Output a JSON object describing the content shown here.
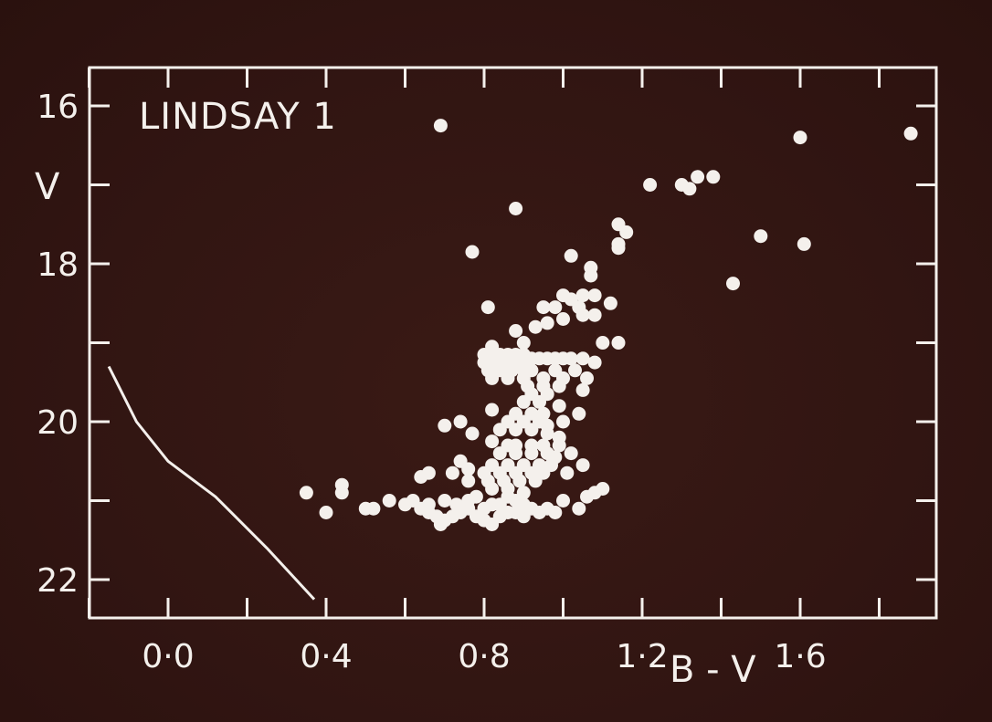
{
  "chart_data": {
    "type": "scatter",
    "title": "LINDSAY 1",
    "xlabel": "B - V",
    "ylabel": "V",
    "xlim": [
      -0.2,
      1.95
    ],
    "ylim": [
      22.5,
      15.6
    ],
    "y_inverted": true,
    "grid": false,
    "x_ticks": [
      0.0,
      0.4,
      0.8,
      1.2,
      1.6
    ],
    "x_tick_labels": [
      "0·0",
      "0·4",
      "0·8",
      "1·2",
      "1·6"
    ],
    "y_ticks": [
      16,
      18,
      20,
      22
    ],
    "y_tick_labels": [
      "16",
      "18",
      "20",
      "22"
    ],
    "colors": {
      "background": "#311512",
      "ink": "#f4f0ec"
    },
    "series": [
      {
        "kind": "line",
        "values": [
          [
            -0.15,
            19.3
          ],
          [
            -0.08,
            20.0
          ],
          [
            0.0,
            20.5
          ],
          [
            0.12,
            20.95
          ],
          [
            0.25,
            21.6
          ],
          [
            0.37,
            22.25
          ]
        ]
      },
      {
        "kind": "points",
        "values": [
          [
            0.69,
            16.25
          ],
          [
            1.6,
            16.4
          ],
          [
            1.88,
            16.35
          ],
          [
            1.22,
            17.0
          ],
          [
            1.3,
            17.0
          ],
          [
            1.32,
            17.05
          ],
          [
            1.34,
            16.9
          ],
          [
            1.38,
            16.9
          ],
          [
            0.88,
            17.3
          ],
          [
            1.14,
            17.5
          ],
          [
            1.16,
            17.6
          ],
          [
            1.14,
            17.75
          ],
          [
            1.14,
            17.8
          ],
          [
            1.5,
            17.65
          ],
          [
            1.61,
            17.75
          ],
          [
            0.77,
            17.85
          ],
          [
            1.02,
            17.9
          ],
          [
            1.07,
            18.05
          ],
          [
            1.07,
            18.15
          ],
          [
            1.43,
            18.25
          ],
          [
            1.0,
            18.4
          ],
          [
            1.02,
            18.45
          ],
          [
            1.05,
            18.4
          ],
          [
            1.08,
            18.4
          ],
          [
            0.98,
            18.55
          ],
          [
            1.04,
            18.55
          ],
          [
            1.05,
            18.65
          ],
          [
            1.12,
            18.5
          ],
          [
            0.95,
            18.55
          ],
          [
            0.81,
            18.55
          ],
          [
            1.0,
            18.7
          ],
          [
            1.08,
            18.65
          ],
          [
            0.96,
            18.75
          ],
          [
            0.93,
            18.8
          ],
          [
            0.88,
            18.85
          ],
          [
            1.1,
            19.0
          ],
          [
            1.14,
            19.0
          ],
          [
            0.82,
            19.05
          ],
          [
            0.9,
            19.0
          ],
          [
            0.8,
            19.15
          ],
          [
            0.82,
            19.15
          ],
          [
            0.84,
            19.15
          ],
          [
            0.86,
            19.15
          ],
          [
            0.88,
            19.15
          ],
          [
            0.9,
            19.15
          ],
          [
            0.8,
            19.25
          ],
          [
            0.82,
            19.25
          ],
          [
            0.84,
            19.25
          ],
          [
            0.86,
            19.25
          ],
          [
            0.88,
            19.25
          ],
          [
            0.9,
            19.25
          ],
          [
            0.92,
            19.2
          ],
          [
            0.94,
            19.2
          ],
          [
            0.96,
            19.2
          ],
          [
            0.98,
            19.2
          ],
          [
            1.0,
            19.2
          ],
          [
            1.02,
            19.2
          ],
          [
            1.05,
            19.2
          ],
          [
            1.08,
            19.25
          ],
          [
            0.81,
            19.35
          ],
          [
            0.84,
            19.35
          ],
          [
            0.87,
            19.35
          ],
          [
            0.9,
            19.35
          ],
          [
            0.92,
            19.35
          ],
          [
            0.98,
            19.35
          ],
          [
            1.03,
            19.35
          ],
          [
            0.82,
            19.45
          ],
          [
            0.86,
            19.45
          ],
          [
            0.9,
            19.45
          ],
          [
            0.95,
            19.45
          ],
          [
            1.0,
            19.45
          ],
          [
            1.06,
            19.45
          ],
          [
            0.91,
            19.55
          ],
          [
            0.95,
            19.55
          ],
          [
            0.99,
            19.55
          ],
          [
            1.05,
            19.6
          ],
          [
            0.92,
            19.65
          ],
          [
            0.96,
            19.65
          ],
          [
            0.9,
            19.75
          ],
          [
            0.94,
            19.75
          ],
          [
            0.99,
            19.8
          ],
          [
            0.82,
            19.85
          ],
          [
            0.88,
            19.9
          ],
          [
            0.92,
            19.9
          ],
          [
            0.95,
            19.9
          ],
          [
            0.86,
            20.0
          ],
          [
            0.9,
            20.0
          ],
          [
            0.94,
            20.0
          ],
          [
            0.96,
            20.05
          ],
          [
            1.0,
            20.0
          ],
          [
            1.04,
            19.9
          ],
          [
            0.84,
            20.1
          ],
          [
            0.88,
            20.1
          ],
          [
            0.92,
            20.1
          ],
          [
            0.96,
            20.15
          ],
          [
            0.99,
            20.2
          ],
          [
            0.82,
            20.25
          ],
          [
            0.86,
            20.3
          ],
          [
            0.88,
            20.3
          ],
          [
            0.92,
            20.3
          ],
          [
            0.95,
            20.3
          ],
          [
            0.99,
            20.3
          ],
          [
            0.84,
            20.4
          ],
          [
            0.88,
            20.4
          ],
          [
            0.92,
            20.4
          ],
          [
            0.96,
            20.4
          ],
          [
            0.98,
            20.45
          ],
          [
            1.02,
            20.4
          ],
          [
            0.82,
            20.55
          ],
          [
            0.86,
            20.55
          ],
          [
            0.9,
            20.55
          ],
          [
            0.94,
            20.55
          ],
          [
            0.97,
            20.55
          ],
          [
            0.8,
            20.65
          ],
          [
            0.84,
            20.65
          ],
          [
            0.88,
            20.65
          ],
          [
            0.92,
            20.65
          ],
          [
            0.95,
            20.65
          ],
          [
            0.81,
            20.75
          ],
          [
            0.85,
            20.75
          ],
          [
            0.89,
            20.75
          ],
          [
            0.93,
            20.75
          ],
          [
            0.82,
            20.85
          ],
          [
            0.86,
            20.85
          ],
          [
            0.9,
            20.9
          ],
          [
            0.74,
            20.5
          ],
          [
            0.76,
            20.6
          ],
          [
            0.76,
            20.75
          ],
          [
            0.72,
            20.65
          ],
          [
            0.66,
            20.65
          ],
          [
            0.64,
            20.7
          ],
          [
            0.74,
            20.0
          ],
          [
            0.7,
            20.05
          ],
          [
            0.77,
            20.15
          ],
          [
            1.01,
            20.65
          ],
          [
            1.05,
            20.55
          ],
          [
            1.06,
            20.95
          ],
          [
            1.08,
            20.9
          ],
          [
            1.1,
            20.85
          ],
          [
            1.0,
            21.0
          ],
          [
            1.04,
            21.1
          ],
          [
            0.35,
            20.9
          ],
          [
            0.44,
            20.8
          ],
          [
            0.44,
            20.9
          ],
          [
            0.4,
            21.15
          ],
          [
            0.5,
            21.1
          ],
          [
            0.52,
            21.1
          ],
          [
            0.56,
            21.0
          ],
          [
            0.6,
            21.05
          ],
          [
            0.64,
            21.1
          ],
          [
            0.66,
            21.15
          ],
          [
            0.68,
            21.2
          ],
          [
            0.7,
            21.25
          ],
          [
            0.72,
            21.2
          ],
          [
            0.74,
            21.15
          ],
          [
            0.76,
            21.1
          ],
          [
            0.78,
            21.2
          ],
          [
            0.8,
            21.1
          ],
          [
            0.82,
            21.05
          ],
          [
            0.84,
            21.2
          ],
          [
            0.86,
            21.15
          ],
          [
            0.88,
            21.0
          ],
          [
            0.9,
            21.2
          ],
          [
            0.92,
            21.1
          ],
          [
            0.94,
            21.15
          ],
          [
            0.96,
            21.1
          ],
          [
            0.66,
            21.05
          ],
          [
            0.7,
            21.0
          ],
          [
            0.76,
            21.0
          ],
          [
            0.8,
            21.25
          ],
          [
            0.84,
            21.05
          ],
          [
            0.88,
            21.15
          ],
          [
            0.9,
            21.05
          ],
          [
            0.69,
            21.3
          ],
          [
            0.82,
            21.3
          ],
          [
            0.86,
            20.95
          ],
          [
            0.78,
            20.95
          ],
          [
            0.73,
            21.05
          ],
          [
            0.62,
            21.0
          ],
          [
            0.98,
            21.15
          ]
        ]
      }
    ]
  }
}
